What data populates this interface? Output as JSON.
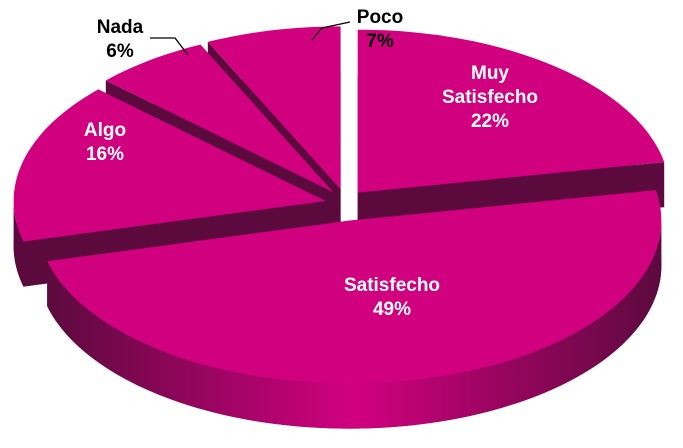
{
  "chart_data": {
    "type": "pie",
    "categories": [
      "Muy Satisfecho",
      "Satisfecho",
      "Algo",
      "Nada",
      "Poco"
    ],
    "values": [
      22,
      49,
      16,
      6,
      7
    ],
    "value_labels": [
      "22%",
      "49%",
      "16%",
      "6%",
      "7%"
    ],
    "color": "#d1007f",
    "side_color": "#5c0a3e"
  }
}
